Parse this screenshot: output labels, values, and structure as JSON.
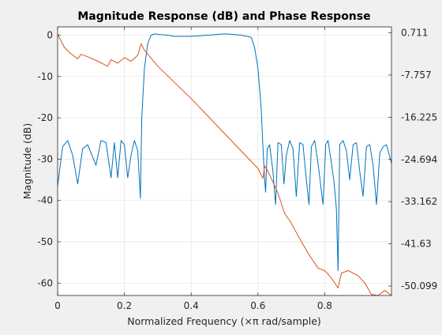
{
  "chart_data": {
    "type": "line",
    "title": "Magnitude Response (dB) and Phase Response",
    "xlabel": "Normalized Frequency (×π rad/sample)",
    "ylabel_left": "Magnitude (dB)",
    "ylabel_right": "",
    "xlim": [
      0,
      1
    ],
    "ylim_left": [
      -63,
      2
    ],
    "ylim_right": [
      -52.0,
      1.9
    ],
    "x_ticks": [
      0,
      0.2,
      0.4,
      0.6,
      0.8
    ],
    "x_tick_labels": [
      "0",
      "0.2",
      "0.4",
      "0.6",
      "0.8"
    ],
    "y_ticks_left": [
      0,
      -10,
      -20,
      -30,
      -40,
      -50,
      -60
    ],
    "y_tick_labels_left": [
      "0",
      "-10",
      "-20",
      "-30",
      "-40",
      "-50",
      "-60"
    ],
    "y_ticks_right": [
      0.711,
      -7.757,
      -16.225,
      -24.694,
      -33.162,
      -41.63,
      -50.099
    ],
    "y_tick_labels_right": [
      "0.711",
      "-7.757",
      "-16.225",
      "-24.694",
      "-33.162",
      "-41.63",
      "-50.099"
    ],
    "grid": true,
    "colors": {
      "magnitude": "#0072bd",
      "phase": "#d95319",
      "axes_bg": "#ffffff",
      "figure_bg": "#f0f0f0",
      "grid": "#e3e3e3",
      "axis": "#262626"
    },
    "series": [
      {
        "axis": "left",
        "x": [
          0,
          0.015,
          0.03,
          0.045,
          0.06,
          0.075,
          0.09,
          0.105,
          0.115,
          0.13,
          0.145,
          0.16,
          0.17,
          0.18,
          0.19,
          0.2,
          0.21,
          0.22,
          0.23,
          0.24,
          0.248,
          0.252,
          0.26,
          0.27,
          0.28,
          0.29,
          0.3,
          0.31,
          0.33,
          0.35,
          0.4,
          0.45,
          0.5,
          0.52,
          0.55,
          0.58,
          0.59,
          0.6,
          0.61,
          0.615,
          0.62,
          0.623,
          0.628,
          0.635,
          0.645,
          0.653,
          0.66,
          0.67,
          0.678,
          0.685,
          0.695,
          0.705,
          0.715,
          0.725,
          0.735,
          0.745,
          0.753,
          0.76,
          0.77,
          0.78,
          0.795,
          0.803,
          0.81,
          0.82,
          0.828,
          0.835,
          0.84,
          0.845,
          0.855,
          0.865,
          0.875,
          0.885,
          0.895,
          0.905,
          0.915,
          0.925,
          0.935,
          0.945,
          0.955,
          0.965,
          0.975,
          0.985,
          1.0
        ],
        "y": [
          -36.5,
          -27,
          -25.5,
          -29,
          -36,
          -27.5,
          -26.5,
          -29.5,
          -31.5,
          -25.5,
          -26,
          -34.5,
          -26,
          -34.5,
          -25.5,
          -26.5,
          -34.5,
          -29,
          -25.5,
          -28,
          -39.5,
          -20,
          -8,
          -2,
          0,
          0.3,
          0.2,
          0.1,
          0,
          -0.3,
          -0.3,
          0,
          0.3,
          0.2,
          0,
          -0.5,
          -3,
          -8,
          -18,
          -27,
          -35,
          -38,
          -27.5,
          -26.5,
          -33,
          -41,
          -26,
          -26.5,
          -36,
          -29,
          -25.5,
          -27.5,
          -39,
          -26,
          -26.5,
          -35,
          -41,
          -27,
          -25.5,
          -31,
          -41,
          -26.5,
          -25.5,
          -31,
          -35.5,
          -42,
          -57,
          -26.5,
          -25.5,
          -28,
          -35,
          -26.5,
          -26,
          -33,
          -39,
          -27,
          -26.5,
          -31.5,
          -41,
          -28.5,
          -27,
          -26.5,
          -31
        ]
      },
      {
        "axis": "right",
        "x": [
          0,
          0.02,
          0.04,
          0.06,
          0.07,
          0.09,
          0.12,
          0.15,
          0.16,
          0.18,
          0.2,
          0.22,
          0.24,
          0.25,
          0.26,
          0.3,
          0.4,
          0.5,
          0.55,
          0.6,
          0.615,
          0.62,
          0.628,
          0.64,
          0.66,
          0.68,
          0.7,
          0.72,
          0.75,
          0.78,
          0.8,
          0.82,
          0.84,
          0.85,
          0.87,
          0.9,
          0.92,
          0.94,
          0.96,
          0.98,
          1.0
        ],
        "y": [
          0.4,
          -2.2,
          -3.5,
          -4.5,
          -3.6,
          -4.1,
          -5.0,
          -6.0,
          -4.7,
          -5.4,
          -4.3,
          -5.0,
          -3.8,
          -1.5,
          -2.8,
          -6.0,
          -12.5,
          -19.5,
          -23.0,
          -26.5,
          -28.5,
          -26.0,
          -26.8,
          -28.5,
          -31.5,
          -35.5,
          -37.5,
          -40.0,
          -43.5,
          -46.5,
          -47.0,
          -48.5,
          -50.5,
          -47.5,
          -47.0,
          -48.0,
          -49.5,
          -51.8,
          -52.0,
          -51.0,
          -52.0
        ]
      }
    ]
  }
}
